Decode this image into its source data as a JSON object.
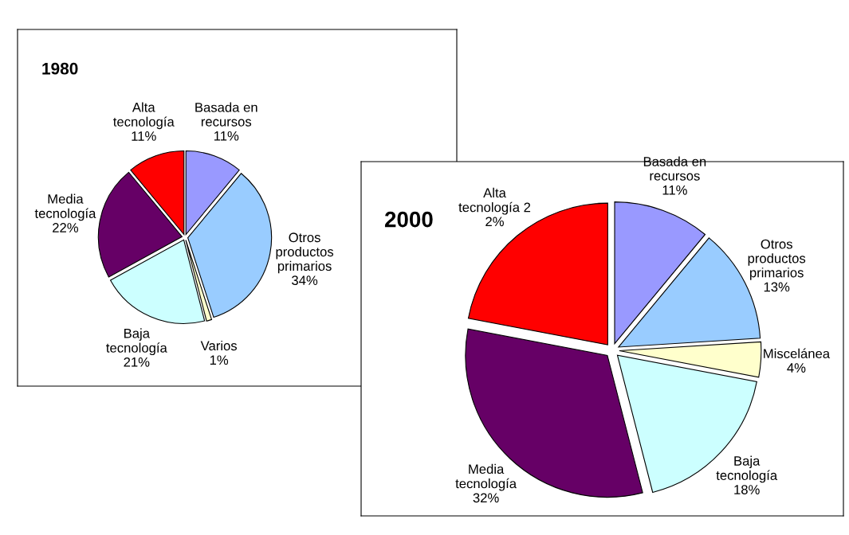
{
  "chart_data": [
    {
      "type": "pie",
      "title": "1980",
      "categories": [
        "Basada en\nrecursos\n11%",
        "Otros\nproductos\nprimarios\n34%",
        "Varios\n1%",
        "Baja\ntecnología\n21%",
        "Media\ntecnología\n22%",
        "Alta\ntecnología\n11%"
      ],
      "values": [
        11,
        34,
        1,
        21,
        22,
        11
      ],
      "colors": [
        "#9999ff",
        "#99ccff",
        "#ffffcc",
        "#ccffff",
        "#660066",
        "#ff0000"
      ]
    },
    {
      "type": "pie",
      "title": "2000",
      "categories": [
        "Basada en\nrecursos\n11%",
        "Otros\nproductos\nprimarios\n13%",
        "Miscelánea\n4%",
        "Baja\ntecnología\n18%",
        "Media\ntecnología\n32%",
        "Alta\ntecnología 2\n2%"
      ],
      "values": [
        11,
        13,
        4,
        18,
        32,
        22
      ],
      "colors": [
        "#9999ff",
        "#99ccff",
        "#ffffcc",
        "#ccffff",
        "#660066",
        "#ff0000"
      ]
    }
  ]
}
